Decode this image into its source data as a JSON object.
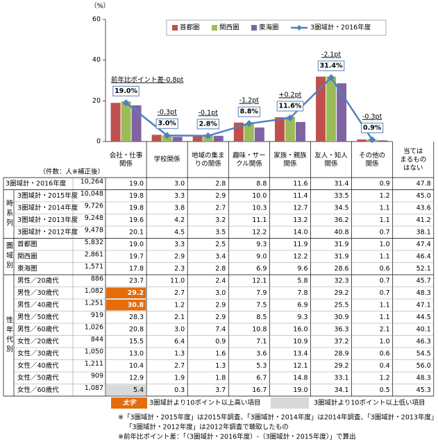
{
  "chart_data": {
    "type": "bar",
    "y_unit": "（%）",
    "ylim": [
      0,
      60
    ],
    "yticks": [
      0,
      20,
      40,
      60
    ],
    "grid": false,
    "legend": "top",
    "categories": [
      "会社・仕事\n関係",
      "学校関係",
      "地域の集ま\nりの関係",
      "趣味・サー\nクル関係",
      "家族・親族\n関係",
      "友人・知人\n関係",
      "その他の\n関係"
    ],
    "series": [
      {
        "name": "首都圏",
        "color": "#c0504d",
        "values": [
          19.0,
          3.3,
          2.5,
          9.3,
          11.9,
          31.9,
          1.0
        ]
      },
      {
        "name": "関西圏",
        "color": "#9bbb59",
        "values": [
          19.7,
          2.9,
          3.4,
          9.0,
          12.2,
          31.9,
          1.1
        ]
      },
      {
        "name": "東海圏",
        "color": "#8064a2",
        "values": [
          17.8,
          2.3,
          2.8,
          6.9,
          9.6,
          28.6,
          0.6
        ]
      },
      {
        "name": "3圏域計・2016年度",
        "type": "line",
        "color": "#4f81bd",
        "values": [
          19.0,
          3.0,
          2.8,
          8.8,
          11.6,
          31.4,
          0.9
        ],
        "value_labels": [
          "19.0%",
          "3.0%",
          "2.8%",
          "8.8%",
          "11.6%",
          "31.4%",
          "0.9%"
        ]
      }
    ],
    "annotations": [
      "前年比ポイント差-0.8pt",
      "-0.3pt",
      "-0.1pt",
      "-1.2pt",
      "+0.2pt",
      "-2.1pt",
      "-0.3pt"
    ]
  },
  "table": {
    "count_label": "（件数：人※補正後）",
    "last_column": "当ては\nまるもの\nはない",
    "groups": [
      {
        "label": "時系列",
        "from": 1,
        "to": 4
      },
      {
        "label": "圏域別",
        "from": 5,
        "to": 7
      },
      {
        "label": "性年代別",
        "from": 8,
        "to": 17
      }
    ],
    "rows": [
      {
        "label": "3圏域計・2016年度",
        "n": "10,264",
        "values": [
          "19.0",
          "3.0",
          "2.8",
          "8.8",
          "11.6",
          "31.4",
          "0.9",
          "47.8"
        ]
      },
      {
        "label": "3圏域計・2015年度",
        "n": "10,048",
        "values": [
          "19.8",
          "3.3",
          "2.9",
          "10.0",
          "11.4",
          "33.5",
          "1.2",
          "45.0"
        ]
      },
      {
        "label": "3圏域計・2014年度",
        "n": "9,726",
        "values": [
          "19.8",
          "3.8",
          "2.7",
          "10.3",
          "12.7",
          "34.5",
          "1.1",
          "43.6"
        ]
      },
      {
        "label": "3圏域計・2013年度",
        "n": "9,248",
        "values": [
          "19.6",
          "4.2",
          "3.2",
          "11.1",
          "13.2",
          "36.2",
          "1.1",
          "41.2"
        ]
      },
      {
        "label": "3圏域計・2012年度",
        "n": "9,478",
        "values": [
          "20.1",
          "4.5",
          "3.5",
          "12.2",
          "14.0",
          "40.8",
          "0.7",
          "38.1"
        ]
      },
      {
        "label": "首都圏",
        "n": "5,832",
        "values": [
          "19.0",
          "3.3",
          "2.5",
          "9.3",
          "11.9",
          "31.9",
          "1.0",
          "47.4"
        ]
      },
      {
        "label": "関西圏",
        "n": "2,861",
        "values": [
          "19.7",
          "2.9",
          "3.4",
          "9.0",
          "12.2",
          "31.9",
          "1.1",
          "46.4"
        ]
      },
      {
        "label": "東海圏",
        "n": "1,571",
        "values": [
          "17.8",
          "2.3",
          "2.8",
          "6.9",
          "9.6",
          "28.6",
          "0.6",
          "52.1"
        ]
      },
      {
        "label": "男性／20歳代",
        "n": "886",
        "values": [
          "23.7",
          "11.0",
          "2.4",
          "12.1",
          "5.8",
          "32.3",
          "0.7",
          "45.7"
        ]
      },
      {
        "label": "男性／30歳代",
        "n": "1,082",
        "values": [
          "29.2",
          "2.7",
          "3.0",
          "7.9",
          "7.8",
          "29.2",
          "0.7",
          "48.3"
        ]
      },
      {
        "label": "男性／40歳代",
        "n": "1,251",
        "values": [
          "30.8",
          "1.2",
          "2.9",
          "7.5",
          "6.9",
          "25.5",
          "1.1",
          "47.1"
        ]
      },
      {
        "label": "男性／50歳代",
        "n": "919",
        "values": [
          "28.3",
          "2.1",
          "2.9",
          "8.5",
          "9.3",
          "30.9",
          "1.1",
          "44.5"
        ]
      },
      {
        "label": "男性／60歳代",
        "n": "1,026",
        "values": [
          "20.8",
          "3.0",
          "7.4",
          "10.8",
          "16.0",
          "36.3",
          "2.1",
          "40.1"
        ]
      },
      {
        "label": "女性／20歳代",
        "n": "844",
        "values": [
          "15.5",
          "6.4",
          "0.9",
          "7.1",
          "10.9",
          "37.2",
          "1.0",
          "46.3"
        ]
      },
      {
        "label": "女性／30歳代",
        "n": "1,050",
        "values": [
          "13.0",
          "1.3",
          "1.6",
          "3.6",
          "13.4",
          "28.9",
          "0.6",
          "54.5"
        ]
      },
      {
        "label": "女性／40歳代",
        "n": "1,211",
        "values": [
          "10.4",
          "2.7",
          "1.3",
          "5.3",
          "12.1",
          "29.2",
          "0.4",
          "56.0"
        ]
      },
      {
        "label": "女性／50歳代",
        "n": "909",
        "values": [
          "12.9",
          "1.9",
          "1.8",
          "6.7",
          "14.8",
          "33.1",
          "1.2",
          "48.3"
        ]
      },
      {
        "label": "女性／60歳代",
        "n": "1,087",
        "values": [
          "5.4",
          "0.3",
          "3.7",
          "16.7",
          "19.0",
          "34.1",
          "0.5",
          "45.3"
        ]
      }
    ]
  },
  "legend": {
    "high_mark": "太字",
    "high": "3圏域計より10ポイント以上高い項目",
    "low": "3圏域計より10ポイント以上低い項目"
  },
  "notes": [
    "※「3圏域計・2015年度」は2015年調査、「3圏域計・2014年度」は2014年調査、「3圏域計・2013年度」は2013年調査、",
    "「3圏域計・2012年度」は2012年調査で聴取したもの",
    "※前年比ポイント差：「（3圏域計・2016年度）-（3圏域計・2015年度）」で算出"
  ]
}
